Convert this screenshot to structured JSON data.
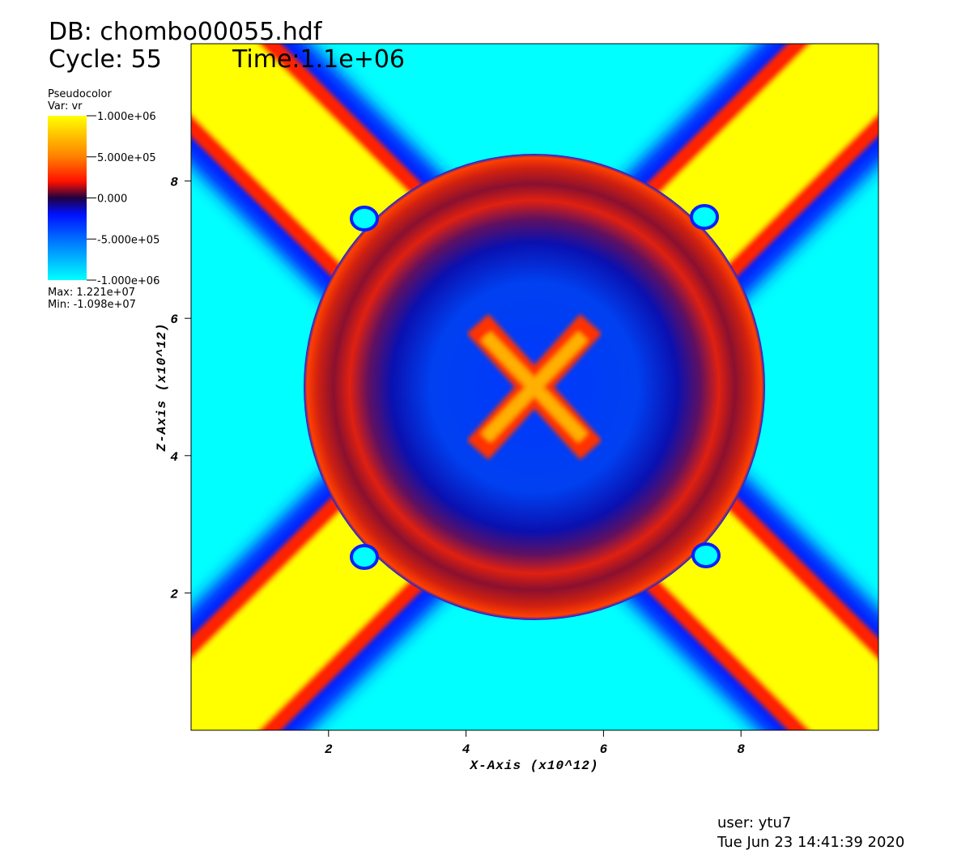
{
  "header": {
    "db": "DB: chombo00055.hdf",
    "cycle": "Cycle: 55",
    "time": "Time:1.1e+06"
  },
  "chart_data": {
    "type": "pseudocolor",
    "xlabel": "X-Axis (x10^12)",
    "ylabel": "Z-Axis (x10^12)",
    "xlim": [
      0,
      10
    ],
    "ylim": [
      0,
      10
    ],
    "xticks": [
      2,
      4,
      6,
      8
    ],
    "yticks": [
      2,
      4,
      6,
      8
    ],
    "legend": {
      "plot": "Pseudocolor",
      "variable": "Var: vr",
      "clim": [
        -1000000,
        1000000
      ],
      "ticks": [
        {
          "value": 1000000,
          "label": "1.000e+06"
        },
        {
          "value": 500000,
          "label": "5.000e+05"
        },
        {
          "value": 0,
          "label": "0.000"
        },
        {
          "value": -500000,
          "label": "-5.000e+05"
        },
        {
          "value": -1000000,
          "label": "-1.000e+06"
        }
      ],
      "max": "Max:  1.221e+07",
      "min": "Min: -1.098e+07"
    }
  },
  "footer": {
    "user": "user: ytu7",
    "date": "Tue Jun 23 14:41:39 2020"
  }
}
